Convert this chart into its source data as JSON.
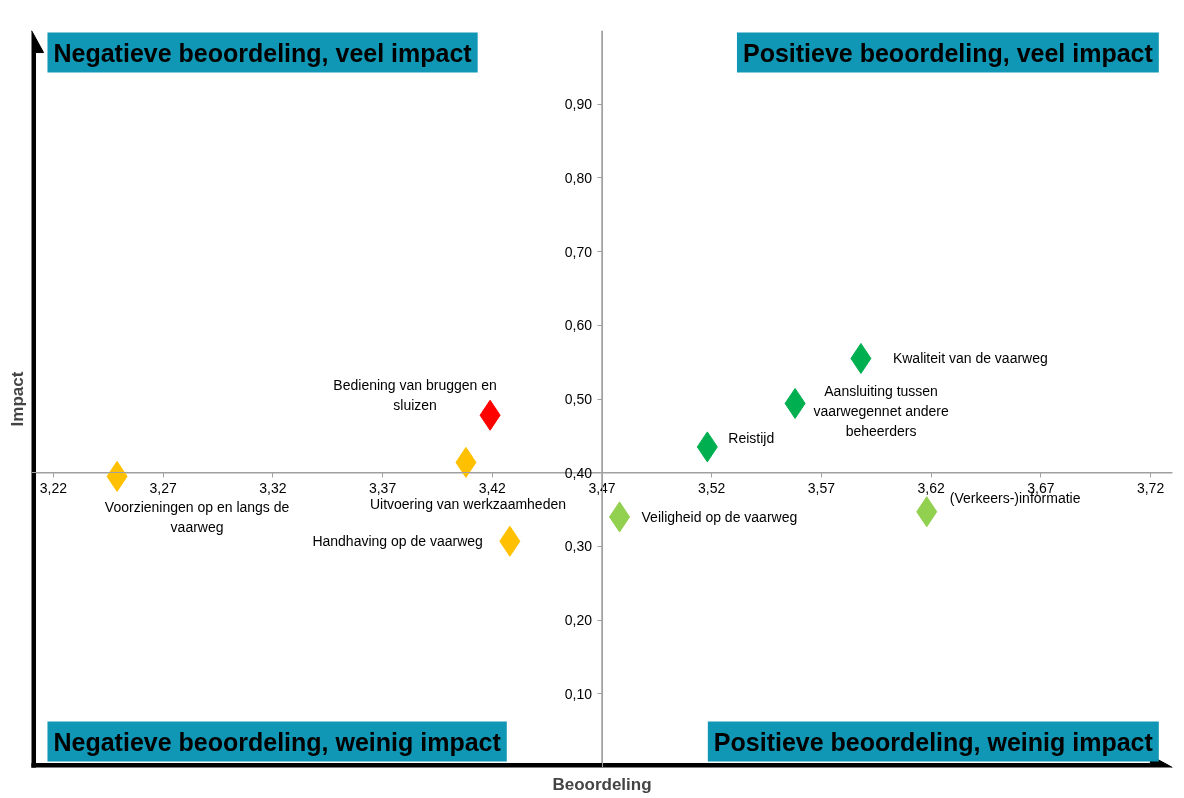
{
  "chart_data": {
    "type": "scatter",
    "xlabel": "Beoordeling",
    "ylabel": "Impact",
    "x": [
      3.249,
      3.408,
      3.419,
      3.428,
      3.478,
      3.518,
      3.558,
      3.588,
      3.618
    ],
    "values": [
      0.395,
      0.414,
      0.478,
      0.307,
      0.34,
      0.435,
      0.494,
      0.555,
      0.347
    ],
    "colors": [
      "#ffc000",
      "#ffc000",
      "#ff0000",
      "#ffc000",
      "#92d050",
      "#00b050",
      "#00b050",
      "#00b050",
      "#92d050"
    ],
    "marker": "diamond",
    "xlim": [
      3.21,
      3.73
    ],
    "ylim": [
      0,
      1.0
    ],
    "xticks": [
      {
        "value": 3.22,
        "label": "3,22"
      },
      {
        "value": 3.27,
        "label": "3,27"
      },
      {
        "value": 3.32,
        "label": "3,32"
      },
      {
        "value": 3.37,
        "label": "3,37"
      },
      {
        "value": 3.42,
        "label": "3,42"
      },
      {
        "value": 3.47,
        "label": "3,47"
      },
      {
        "value": 3.52,
        "label": "3,52"
      },
      {
        "value": 3.57,
        "label": "3,57"
      },
      {
        "value": 3.62,
        "label": "3,62"
      },
      {
        "value": 3.67,
        "label": "3,67"
      },
      {
        "value": 3.72,
        "label": "3,72"
      }
    ],
    "yticks": [
      {
        "value": 0.1,
        "label": "0,10"
      },
      {
        "value": 0.2,
        "label": "0,20"
      },
      {
        "value": 0.3,
        "label": "0,30"
      },
      {
        "value": 0.4,
        "label": "0,40"
      },
      {
        "value": 0.5,
        "label": "0,50"
      },
      {
        "value": 0.6,
        "label": "0,60"
      },
      {
        "value": 0.7,
        "label": "0,70"
      },
      {
        "value": 0.8,
        "label": "0,80"
      },
      {
        "value": 0.9,
        "label": "0,90"
      }
    ],
    "ref_lines": [
      {
        "axis": "x",
        "value": 3.47
      },
      {
        "axis": "y",
        "value": 0.4
      }
    ],
    "annotations": [
      "Negatieve beoordeling, veel impact",
      "Positieve beoordeling, veel impact",
      "Negatieve beoordeling, weinig impact",
      "Positieve beoordeling, weinig impact",
      {
        "text": "Voorzieningen op en langs de\nvaarweg",
        "x": 3.249,
        "y": 0.395
      },
      {
        "text": "Uitvoering van werkzaamheden",
        "x": 3.408,
        "y": 0.414
      },
      {
        "text": "Bediening van bruggen en\nsluizen",
        "x": 3.419,
        "y": 0.478
      },
      {
        "text": "Handhaving op de vaarweg",
        "x": 3.428,
        "y": 0.307
      },
      {
        "text": "Veiligheid op de vaarweg",
        "x": 3.478,
        "y": 0.34
      },
      {
        "text": "Reistijd",
        "x": 3.518,
        "y": 0.435
      },
      {
        "text": "Aansluiting tussen\nvaarwegennet andere\nbeheerders",
        "x": 3.558,
        "y": 0.494
      },
      {
        "text": "Kwaliteit van de vaarweg",
        "x": 3.588,
        "y": 0.555
      },
      {
        "text": "(Verkeers-)informatie",
        "x": 3.618,
        "y": 0.347
      }
    ]
  }
}
